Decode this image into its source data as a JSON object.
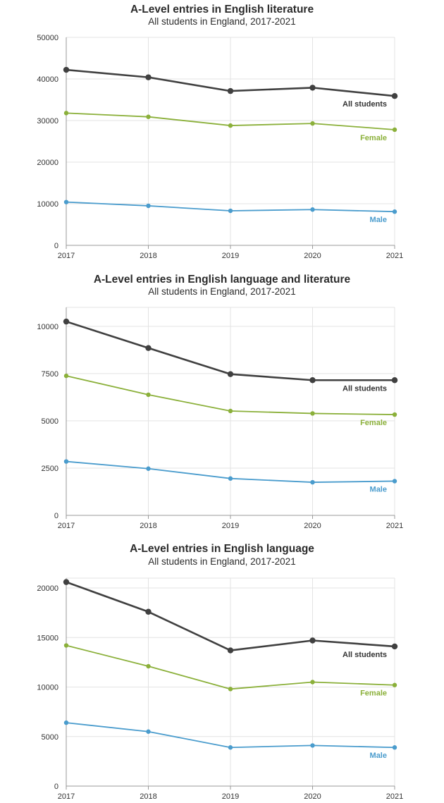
{
  "colors": {
    "all": "#404040",
    "female": "#8bb03a",
    "male": "#4a9ccd",
    "grid": "#e3e3e3",
    "axis": "#999999"
  },
  "chart_data": [
    {
      "type": "line",
      "title": "A-Level entries in English literature",
      "subtitle": "All students in England, 2017-2021",
      "categories": [
        "2017",
        "2018",
        "2019",
        "2020",
        "2021"
      ],
      "ylim": [
        0,
        50000
      ],
      "yticks": [
        0,
        10000,
        20000,
        30000,
        40000,
        50000
      ],
      "series": [
        {
          "name": "All students",
          "key": "all",
          "values": [
            42200,
            40400,
            37100,
            37900,
            35900
          ]
        },
        {
          "name": "Female",
          "key": "female",
          "values": [
            31800,
            30900,
            28800,
            29300,
            27800
          ]
        },
        {
          "name": "Male",
          "key": "male",
          "values": [
            10400,
            9500,
            8300,
            8600,
            8100
          ]
        }
      ]
    },
    {
      "type": "line",
      "title": "A-Level entries in English language and literature",
      "subtitle": "All students in England, 2017-2021",
      "categories": [
        "2017",
        "2018",
        "2019",
        "2020",
        "2021"
      ],
      "ylim": [
        0,
        11000
      ],
      "yticks": [
        0,
        2500,
        5000,
        7500,
        10000
      ],
      "series": [
        {
          "name": "All students",
          "key": "all",
          "values": [
            10250,
            8850,
            7470,
            7150,
            7150
          ]
        },
        {
          "name": "Female",
          "key": "female",
          "values": [
            7380,
            6380,
            5520,
            5390,
            5330
          ]
        },
        {
          "name": "Male",
          "key": "male",
          "values": [
            2850,
            2470,
            1950,
            1750,
            1810
          ]
        }
      ]
    },
    {
      "type": "line",
      "title": "A-Level entries in English language",
      "subtitle": "All students in England, 2017-2021",
      "categories": [
        "2017",
        "2018",
        "2019",
        "2020",
        "2021"
      ],
      "ylim": [
        0,
        21000
      ],
      "yticks": [
        0,
        5000,
        10000,
        15000,
        20000
      ],
      "series": [
        {
          "name": "All students",
          "key": "all",
          "values": [
            20600,
            17600,
            13700,
            14700,
            14100
          ]
        },
        {
          "name": "Female",
          "key": "female",
          "values": [
            14200,
            12100,
            9800,
            10500,
            10200
          ]
        },
        {
          "name": "Male",
          "key": "male",
          "values": [
            6400,
            5500,
            3900,
            4100,
            3900
          ]
        }
      ]
    }
  ]
}
